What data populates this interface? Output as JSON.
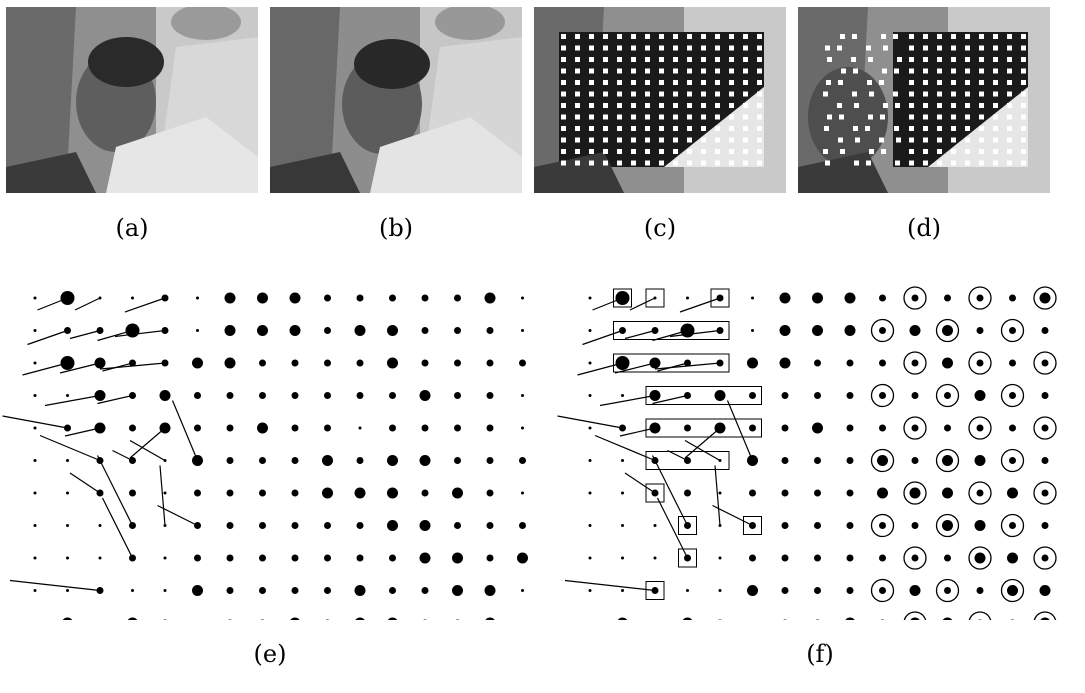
{
  "figure": {
    "panels": [
      {
        "id": "a",
        "caption": "(a)",
        "content": "photo"
      },
      {
        "id": "b",
        "caption": "(b)",
        "content": "photo"
      },
      {
        "id": "c",
        "caption": "(c)",
        "content": "photo-with-grid"
      },
      {
        "id": "d",
        "caption": "(d)",
        "content": "photo-with-grid"
      },
      {
        "id": "e",
        "caption": "(e)",
        "content": "motion-field"
      },
      {
        "id": "f",
        "caption": "(f)",
        "content": "motion-field-annotated"
      }
    ],
    "colors": {
      "dot": "#000000",
      "background": "#ffffff",
      "marker": "#ffffff"
    }
  }
}
